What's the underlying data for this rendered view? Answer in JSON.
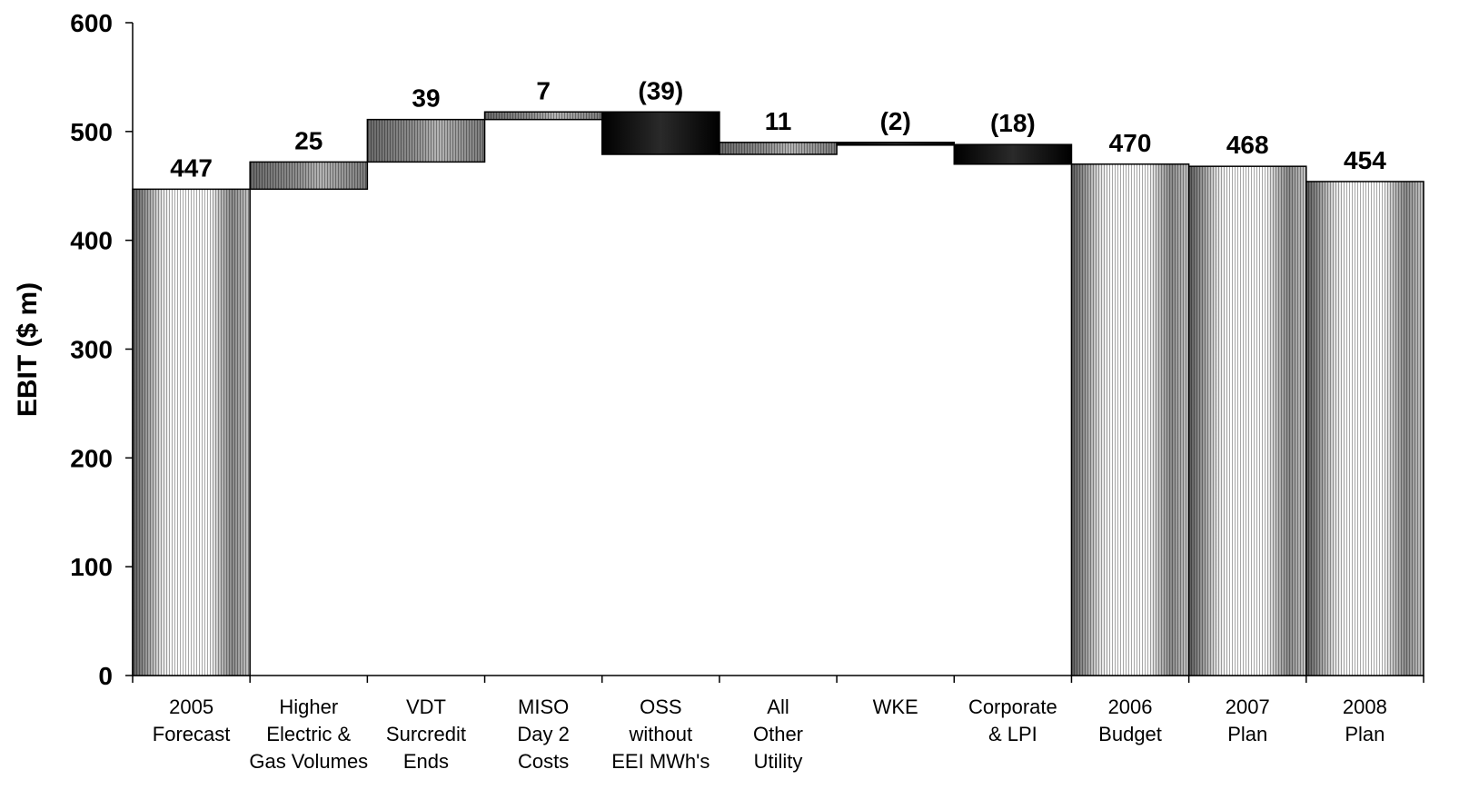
{
  "chart_data": {
    "type": "bar",
    "subtype": "waterfall",
    "ylabel": "EBIT ($ m)",
    "xlabel": "",
    "ylim": [
      0,
      600
    ],
    "yticks": [
      0,
      100,
      200,
      300,
      400,
      500,
      600
    ],
    "grid": false,
    "legend": "none",
    "bars": [
      {
        "category": [
          "2005",
          "Forecast"
        ],
        "kind": "total",
        "start": 0,
        "end": 447,
        "label": "447",
        "style": "total"
      },
      {
        "category": [
          "Higher",
          "Electric &",
          "Gas Volumes"
        ],
        "kind": "delta",
        "start": 447,
        "end": 472,
        "label": "25",
        "style": "hatch"
      },
      {
        "category": [
          "VDT",
          "Surcredit",
          "Ends"
        ],
        "kind": "delta",
        "start": 472,
        "end": 511,
        "label": "39",
        "style": "hatch"
      },
      {
        "category": [
          "MISO",
          "Day 2",
          "Costs"
        ],
        "kind": "delta",
        "start": 511,
        "end": 518,
        "label": "7",
        "style": "hatch"
      },
      {
        "category": [
          "OSS",
          "without",
          "EEI MWh's"
        ],
        "kind": "delta",
        "start": 518,
        "end": 479,
        "label": "(39)",
        "style": "dark"
      },
      {
        "category": [
          "All",
          "Other",
          "Utility"
        ],
        "kind": "delta",
        "start": 479,
        "end": 490,
        "label": "11",
        "style": "hatch"
      },
      {
        "category": [
          "WKE"
        ],
        "kind": "delta",
        "start": 490,
        "end": 488,
        "label": "(2)",
        "style": "dark"
      },
      {
        "category": [
          "Corporate",
          "& LPI"
        ],
        "kind": "delta",
        "start": 488,
        "end": 470,
        "label": "(18)",
        "style": "dark"
      },
      {
        "category": [
          "2006",
          "Budget"
        ],
        "kind": "total",
        "start": 0,
        "end": 470,
        "label": "470",
        "style": "total"
      },
      {
        "category": [
          "2007",
          "Plan"
        ],
        "kind": "total",
        "start": 0,
        "end": 468,
        "label": "468",
        "style": "total"
      },
      {
        "category": [
          "2008",
          "Plan"
        ],
        "kind": "total",
        "start": 0,
        "end": 454,
        "label": "454",
        "style": "total"
      }
    ],
    "colors": {
      "axis": "#000000",
      "dark": "#1a1a1a",
      "hatch": "#555555",
      "background": "#ffffff"
    }
  }
}
